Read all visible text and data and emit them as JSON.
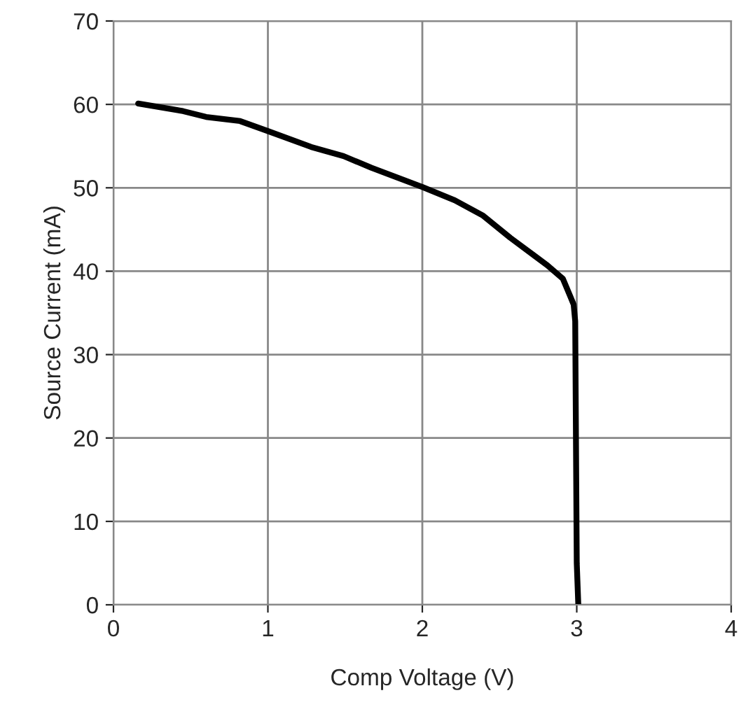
{
  "chart_data": {
    "type": "line",
    "xlabel": "Comp Voltage (V)",
    "ylabel": "Source Current (mA)",
    "xlim": [
      0,
      4
    ],
    "xticks": [
      0,
      1,
      2,
      3,
      4
    ],
    "ylim": [
      0,
      70
    ],
    "yticks": [
      0,
      10,
      20,
      30,
      40,
      50,
      60,
      70
    ],
    "grid": true,
    "line_style": "solid",
    "marker": "none",
    "series": [
      {
        "color": "#000000",
        "x": [
          0.16,
          0.45,
          0.6,
          0.82,
          1.0,
          1.28,
          1.49,
          1.67,
          2.0,
          2.21,
          2.39,
          2.57,
          2.81,
          2.91,
          2.96,
          2.98,
          2.99,
          3.0,
          3.01
        ],
        "values": [
          60.1,
          59.2,
          58.5,
          58.0,
          56.8,
          54.9,
          53.8,
          52.4,
          50.1,
          48.5,
          46.7,
          44.0,
          40.7,
          39.1,
          36.9,
          36,
          34,
          5,
          0
        ]
      }
    ]
  }
}
